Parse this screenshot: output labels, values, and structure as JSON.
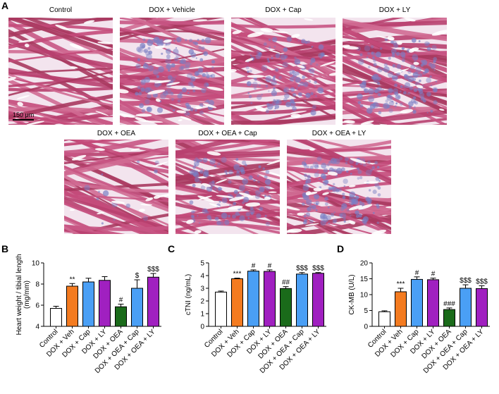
{
  "panels": {
    "a": {
      "letter": "A",
      "images": [
        {
          "title": "Control",
          "fibrosis": 0.0,
          "scale_bar": "150 μm"
        },
        {
          "title": "DOX + Vehicle",
          "fibrosis": 0.55
        },
        {
          "title": "DOX + Cap",
          "fibrosis": 0.45
        },
        {
          "title": "DOX + LY",
          "fibrosis": 0.6
        },
        {
          "title": "DOX + OEA",
          "fibrosis": 0.05
        },
        {
          "title": "DOX + OEA + Cap",
          "fibrosis": 0.45
        },
        {
          "title": "DOX + OEA + LY",
          "fibrosis": 0.6
        }
      ]
    },
    "b": {
      "letter": "B"
    },
    "c": {
      "letter": "C"
    },
    "d": {
      "letter": "D"
    }
  },
  "colors": {
    "control": "#ffffff",
    "dox_veh": "#f47b20",
    "cap": "#4a9ff5",
    "ly": "#a020c0",
    "oea": "#1a6b1a",
    "tissue": "#c44a7a",
    "fibrosis": "#7a7fc4"
  },
  "chart_data": [
    {
      "type": "bar",
      "panel": "B",
      "categories": [
        "Control",
        "DOX + Veh",
        "DOX + Cap",
        "DOX + LY",
        "DOX + OEA",
        "DOX + OEA + Cap",
        "DOX + OEA + LY"
      ],
      "values": [
        5.7,
        7.8,
        8.2,
        8.35,
        5.85,
        7.6,
        8.65
      ],
      "errors": [
        0.2,
        0.25,
        0.35,
        0.35,
        0.25,
        0.8,
        0.35
      ],
      "annotations": [
        "",
        "**",
        "",
        "",
        "#",
        "$",
        "$$$"
      ],
      "ylabel": "Heart weight / tibial length\n(mg/mm)",
      "ylim": [
        4,
        10
      ],
      "yticks": [
        4,
        6,
        8,
        10
      ]
    },
    {
      "type": "bar",
      "panel": "C",
      "categories": [
        "Control",
        "DOX + Veh",
        "DOX + Cap",
        "DOX + LY",
        "DOX + OEA",
        "DOX + OEA + Cap",
        "DOX + OEA + LY"
      ],
      "values": [
        2.7,
        3.75,
        4.35,
        4.33,
        2.98,
        4.12,
        4.18
      ],
      "errors": [
        0.08,
        0.05,
        0.1,
        0.12,
        0.15,
        0.12,
        0.06
      ],
      "annotations": [
        "",
        "***",
        "#",
        "#",
        "##",
        "$$$",
        "$$$"
      ],
      "ylabel": "cTNI (ng/mL)",
      "ylim": [
        0,
        5
      ],
      "yticks": [
        0,
        1,
        2,
        3,
        4,
        5
      ]
    },
    {
      "type": "bar",
      "panel": "D",
      "categories": [
        "Control",
        "DOX + Veh",
        "DOX + Cap",
        "DOX + LY",
        "DOX + OEA",
        "DOX + OEA + Cap",
        "DOX + OEA + LY"
      ],
      "values": [
        4.6,
        10.9,
        14.8,
        14.7,
        5.3,
        12.0,
        11.9
      ],
      "errors": [
        0.3,
        1.1,
        0.8,
        0.5,
        0.5,
        1.1,
        0.9
      ],
      "annotations": [
        "",
        "***",
        "#",
        "#",
        "###",
        "$$$",
        "$$$"
      ],
      "ylabel": "CK-MB (U/L)",
      "ylim": [
        0,
        20
      ],
      "yticks": [
        0,
        5,
        10,
        15,
        20
      ]
    }
  ]
}
